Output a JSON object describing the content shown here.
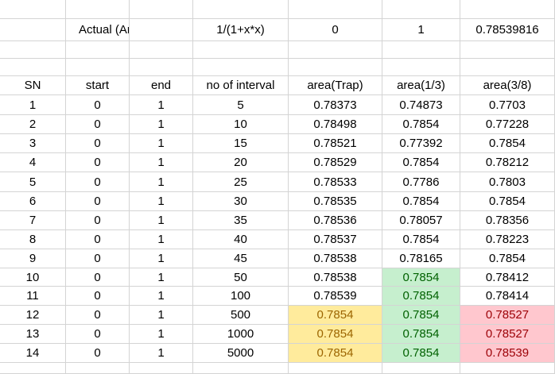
{
  "header_row": {
    "label": "Actual (Analytical)",
    "function": "1/(1+x*x)",
    "lower": "0",
    "upper": "1",
    "value": "0.78539816"
  },
  "columns": [
    "SN",
    "start",
    "end",
    "no of interval",
    "area(Trap)",
    "area(1/3)",
    "area(3/8)"
  ],
  "rows": [
    {
      "sn": "1",
      "start": "0",
      "end": "1",
      "n": "5",
      "trap": "0.78373",
      "s13": "0.74873",
      "s38": "0.7703",
      "hl": [
        "",
        "",
        ""
      ]
    },
    {
      "sn": "2",
      "start": "0",
      "end": "1",
      "n": "10",
      "trap": "0.78498",
      "s13": "0.7854",
      "s38": "0.77228",
      "hl": [
        "",
        "",
        ""
      ]
    },
    {
      "sn": "3",
      "start": "0",
      "end": "1",
      "n": "15",
      "trap": "0.78521",
      "s13": "0.77392",
      "s38": "0.7854",
      "hl": [
        "",
        "",
        ""
      ]
    },
    {
      "sn": "4",
      "start": "0",
      "end": "1",
      "n": "20",
      "trap": "0.78529",
      "s13": "0.7854",
      "s38": "0.78212",
      "hl": [
        "",
        "",
        ""
      ]
    },
    {
      "sn": "5",
      "start": "0",
      "end": "1",
      "n": "25",
      "trap": "0.78533",
      "s13": "0.7786",
      "s38": "0.7803",
      "hl": [
        "",
        "",
        ""
      ]
    },
    {
      "sn": "6",
      "start": "0",
      "end": "1",
      "n": "30",
      "trap": "0.78535",
      "s13": "0.7854",
      "s38": "0.7854",
      "hl": [
        "",
        "",
        ""
      ]
    },
    {
      "sn": "7",
      "start": "0",
      "end": "1",
      "n": "35",
      "trap": "0.78536",
      "s13": "0.78057",
      "s38": "0.78356",
      "hl": [
        "",
        "",
        ""
      ]
    },
    {
      "sn": "8",
      "start": "0",
      "end": "1",
      "n": "40",
      "trap": "0.78537",
      "s13": "0.7854",
      "s38": "0.78223",
      "hl": [
        "",
        "",
        ""
      ]
    },
    {
      "sn": "9",
      "start": "0",
      "end": "1",
      "n": "45",
      "trap": "0.78538",
      "s13": "0.78165",
      "s38": "0.7854",
      "hl": [
        "",
        "",
        ""
      ]
    },
    {
      "sn": "10",
      "start": "0",
      "end": "1",
      "n": "50",
      "trap": "0.78538",
      "s13": "0.7854",
      "s38": "0.78412",
      "hl": [
        "",
        "green",
        ""
      ]
    },
    {
      "sn": "11",
      "start": "0",
      "end": "1",
      "n": "100",
      "trap": "0.78539",
      "s13": "0.7854",
      "s38": "0.78414",
      "hl": [
        "",
        "green",
        ""
      ]
    },
    {
      "sn": "12",
      "start": "0",
      "end": "1",
      "n": "500",
      "trap": "0.7854",
      "s13": "0.7854",
      "s38": "0.78527",
      "hl": [
        "yellow",
        "green",
        "red"
      ]
    },
    {
      "sn": "13",
      "start": "0",
      "end": "1",
      "n": "1000",
      "trap": "0.7854",
      "s13": "0.7854",
      "s38": "0.78527",
      "hl": [
        "yellow",
        "green",
        "red"
      ]
    },
    {
      "sn": "14",
      "start": "0",
      "end": "1",
      "n": "5000",
      "trap": "0.7854",
      "s13": "0.7854",
      "s38": "0.78539",
      "hl": [
        "yellow",
        "green",
        "red"
      ]
    }
  ],
  "colors": {
    "yellow_fill": "#ffeb9c",
    "yellow_text": "#9c6500",
    "green_fill": "#c6efce",
    "green_text": "#006100",
    "red_fill": "#ffc7ce",
    "red_text": "#9c0006",
    "gridline": "#d4d4d4"
  }
}
